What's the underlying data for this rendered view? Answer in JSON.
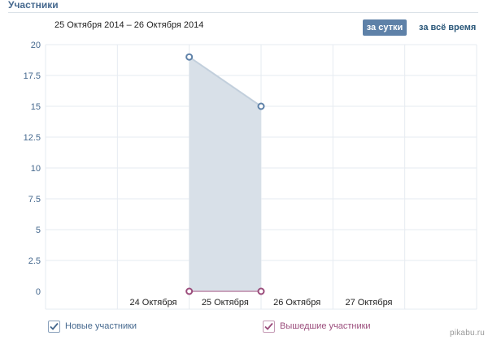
{
  "header": {
    "title": "Участники",
    "date_range": "25 Октября 2014 – 26 Октября 2014"
  },
  "period_buttons": {
    "day_label": "за сутки",
    "all_time_label": "за всё время"
  },
  "legend": {
    "new_members_label": "Новые участники",
    "left_members_label": "Вышедшие участники"
  },
  "watermark": "pikabu.ru",
  "colors": {
    "new_members": "#5e81a8",
    "new_members_fill": "#d6dee7",
    "left_members": "#9b4d7c",
    "grid": "#e6ebf1",
    "axis_text": "#45688e"
  },
  "chart_data": {
    "type": "area",
    "title": "",
    "xlabel": "",
    "ylabel": "",
    "x_ticks": [
      "",
      "24 Октября",
      "25 Октября",
      "26 Октября",
      "27 Октября",
      ""
    ],
    "y_ticks": [
      "0",
      "2.5",
      "5",
      "7.5",
      "10",
      "12.5",
      "15",
      "17.5",
      "20"
    ],
    "ylim": [
      0,
      20
    ],
    "grid": true,
    "legend_position": "bottom-left",
    "series": [
      {
        "name": "Новые участники",
        "x": [
          "25 Октября",
          "26 Октября"
        ],
        "values": [
          19,
          15
        ]
      },
      {
        "name": "Вышедшие участники",
        "x": [
          "25 Октября",
          "26 Октября"
        ],
        "values": [
          0,
          0
        ]
      }
    ]
  }
}
